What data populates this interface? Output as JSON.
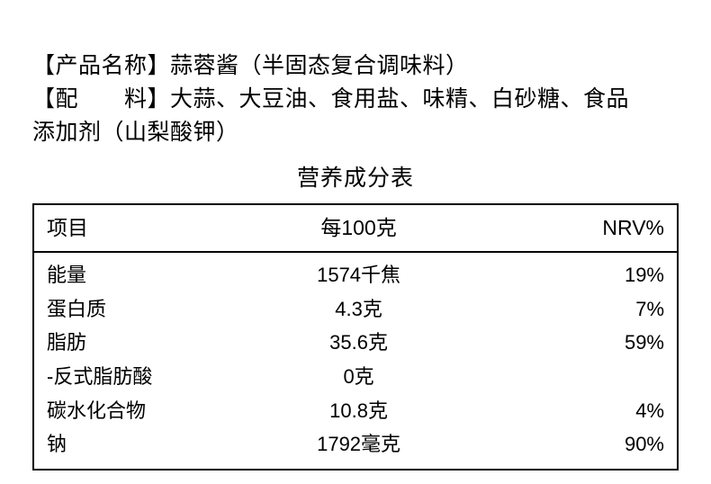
{
  "info": {
    "name_label": "【产品名称】",
    "name_value": "蒜蓉酱（半固态复合调味料）",
    "ingredients_label": "【配　　料】",
    "ingredients_value_line1": "大蒜、大豆油、食用盐、味精、白砂糖、食品",
    "ingredients_value_line2": "添加剂（山梨酸钾）"
  },
  "table": {
    "title": "营养成分表",
    "columns": {
      "item": "项目",
      "per": "每100克",
      "nrv": "NRV%"
    },
    "rows": [
      {
        "item": "能量",
        "per": "1574千焦",
        "nrv": "19%"
      },
      {
        "item": "蛋白质",
        "per": "4.3克",
        "nrv": "7%"
      },
      {
        "item": "脂肪",
        "per": "35.6克",
        "nrv": "59%"
      },
      {
        "item": "-反式脂肪酸",
        "per": "0克",
        "nrv": ""
      },
      {
        "item": "碳水化合物",
        "per": "10.8克",
        "nrv": "4%"
      },
      {
        "item": "钠",
        "per": "1792毫克",
        "nrv": "90%"
      }
    ]
  },
  "style": {
    "background_color": "#ffffff",
    "text_color": "#000000",
    "border_color": "#000000",
    "body_font_size": 25,
    "table_font_size": 22,
    "header_font_size": 23
  }
}
